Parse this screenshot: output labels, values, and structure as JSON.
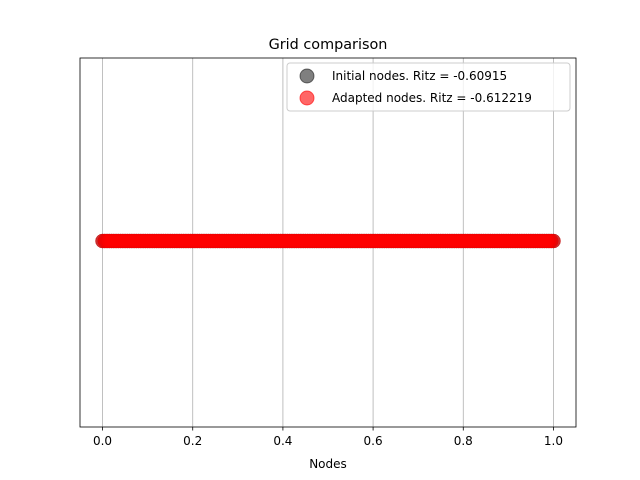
{
  "chart_data": {
    "type": "scatter",
    "title": "Grid comparison",
    "xlabel": "Nodes",
    "ylabel": "",
    "xlim": [
      -0.05,
      1.05
    ],
    "xticks": [
      0.0,
      0.2,
      0.4,
      0.6,
      0.8,
      1.0
    ],
    "xtick_labels": [
      "0.0",
      "0.2",
      "0.4",
      "0.6",
      "0.8",
      "1.0"
    ],
    "y_ticks_shown": false,
    "grid": "vertical",
    "legend_position": "top-right",
    "point_count_per_series": 201,
    "series": [
      {
        "name": "Initial nodes. Ritz = -0.60915",
        "color": "#000000",
        "alpha": 0.5,
        "x_range": [
          0.0,
          1.0
        ],
        "y": 0
      },
      {
        "name": "Adapted nodes. Ritz = -0.612219",
        "color": "#ff0000",
        "alpha": 0.6,
        "x_range": [
          0.0,
          1.0
        ],
        "y": 0
      }
    ]
  }
}
